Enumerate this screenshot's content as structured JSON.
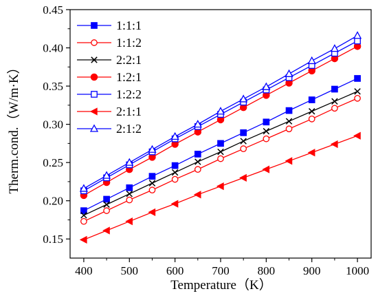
{
  "chart_data": {
    "type": "line",
    "xlabel": "Temperature（K）",
    "ylabel": "Therm.cond.（W/m·K）",
    "xlim": [
      370,
      1030
    ],
    "ylim": [
      0.125,
      0.45
    ],
    "xticks": [
      400,
      500,
      600,
      700,
      800,
      900,
      1000
    ],
    "yticks": [
      0.15,
      0.2,
      0.25,
      0.3,
      0.35,
      0.4,
      0.45
    ],
    "xtick_labels": [
      "400",
      "500",
      "600",
      "700",
      "800",
      "900",
      "1000"
    ],
    "ytick_labels": [
      "0.15",
      "0.20",
      "0.25",
      "0.30",
      "0.35",
      "0.40",
      "0.45"
    ],
    "grid": false,
    "legend_position": "top-left",
    "x": [
      400,
      450,
      500,
      550,
      600,
      650,
      700,
      750,
      800,
      850,
      900,
      950,
      1000
    ],
    "series": [
      {
        "name": "1:1:1",
        "color": "#0000ff",
        "marker": "square-filled",
        "values": [
          0.187,
          0.202,
          0.217,
          0.232,
          0.246,
          0.261,
          0.275,
          0.289,
          0.303,
          0.318,
          0.332,
          0.346,
          0.36
        ]
      },
      {
        "name": "1:1:2",
        "color": "#ff0000",
        "marker": "circle-open",
        "values": [
          0.173,
          0.187,
          0.201,
          0.214,
          0.228,
          0.241,
          0.255,
          0.268,
          0.281,
          0.294,
          0.307,
          0.321,
          0.334
        ]
      },
      {
        "name": "2:2:1",
        "color": "#000000",
        "marker": "x",
        "values": [
          0.181,
          0.195,
          0.209,
          0.223,
          0.237,
          0.251,
          0.264,
          0.278,
          0.291,
          0.304,
          0.317,
          0.33,
          0.343
        ]
      },
      {
        "name": "1:2:1",
        "color": "#ff0000",
        "marker": "circle-filled",
        "values": [
          0.207,
          0.224,
          0.241,
          0.257,
          0.274,
          0.29,
          0.306,
          0.322,
          0.338,
          0.354,
          0.37,
          0.386,
          0.402
        ]
      },
      {
        "name": "1:2:2",
        "color": "#0000ff",
        "marker": "square-open",
        "values": [
          0.213,
          0.23,
          0.247,
          0.264,
          0.281,
          0.297,
          0.313,
          0.329,
          0.345,
          0.361,
          0.377,
          0.393,
          0.409
        ]
      },
      {
        "name": "2:1:1",
        "color": "#ff0000",
        "marker": "triangle-left-filled",
        "values": [
          0.149,
          0.161,
          0.173,
          0.185,
          0.196,
          0.208,
          0.219,
          0.23,
          0.241,
          0.252,
          0.263,
          0.274,
          0.285
        ]
      },
      {
        "name": "2:1:2",
        "color": "#0000ff",
        "marker": "triangle-up-open",
        "values": [
          0.216,
          0.233,
          0.25,
          0.267,
          0.284,
          0.3,
          0.317,
          0.333,
          0.349,
          0.366,
          0.383,
          0.399,
          0.416
        ]
      }
    ]
  }
}
